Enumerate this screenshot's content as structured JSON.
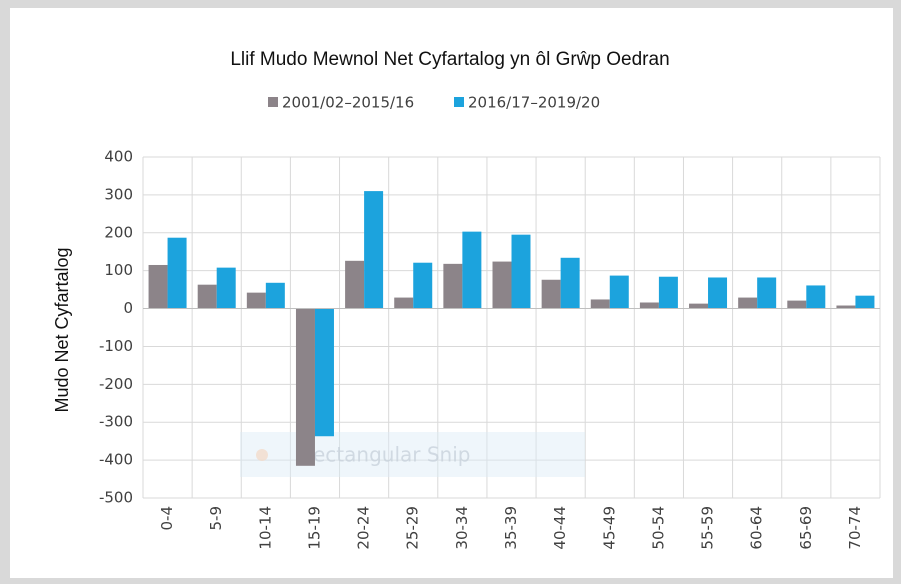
{
  "chart_data": {
    "type": "bar",
    "title": "Llif Mudo Mewnol Net Cyfartalog yn ôl Grŵp Oedran",
    "y_label": "Mudo Net Cyfartalog",
    "annotation": "Rectangular Snip",
    "categories": [
      "0-4",
      "5-9",
      "10-14",
      "15-19",
      "20-24",
      "25-29",
      "30-34",
      "35-39",
      "40-44",
      "45-49",
      "50-54",
      "55-59",
      "60-64",
      "65-69",
      "70-74"
    ],
    "series": [
      {
        "name": "2001/02–2015/16",
        "color": "#8c8489",
        "values": [
          115,
          63,
          42,
          -415,
          126,
          29,
          118,
          124,
          76,
          24,
          16,
          13,
          29,
          21,
          8
        ]
      },
      {
        "name": "2016/17–2019/20",
        "color": "#1ca3dd",
        "values": [
          187,
          108,
          68,
          -337,
          310,
          121,
          203,
          195,
          134,
          87,
          84,
          82,
          82,
          61,
          34
        ]
      }
    ],
    "ylim": [
      -500,
      400
    ],
    "yticks": [
      -500,
      -400,
      -300,
      -200,
      -100,
      0,
      100,
      200,
      300,
      400
    ],
    "grid": true,
    "legend": "top"
  }
}
